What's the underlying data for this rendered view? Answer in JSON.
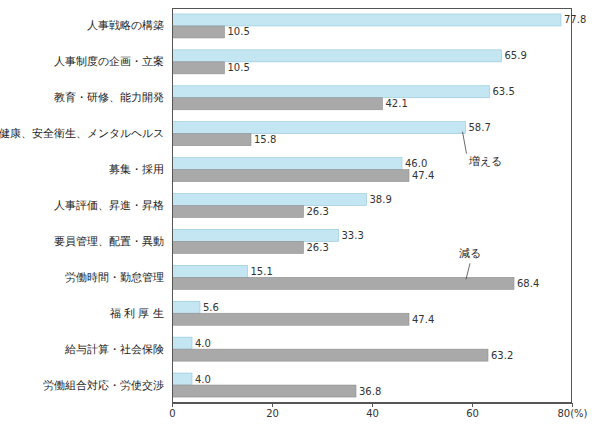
{
  "chart_data": {
    "type": "bar",
    "orientation": "horizontal",
    "categories": [
      "人事戦略の構築",
      "人事制度の企画・立案",
      "教育・研修、能力開発",
      "健康、安全衛生、メンタルヘルス",
      "募集・採用",
      "人事評価、昇進・昇格",
      "要員管理、配置・異動",
      "労働時間・勤怠管理",
      "福 利 厚 生",
      "給与計算・社会保険",
      "労働組合対応・労使交渉"
    ],
    "series": [
      {
        "name": "増える",
        "color": "#c4e6f2",
        "values": [
          77.8,
          65.9,
          63.5,
          58.7,
          46.0,
          38.9,
          33.3,
          15.1,
          5.6,
          4.0,
          4.0
        ],
        "value_labels": [
          "77.8",
          "65.9",
          "63.5",
          "58.7",
          "46.0",
          "38.9",
          "33.3",
          "15.1",
          "5.6",
          "4.0",
          "4.0"
        ]
      },
      {
        "name": "減る",
        "color": "#a9a9a9",
        "values": [
          10.5,
          10.5,
          42.1,
          15.8,
          47.4,
          26.3,
          26.3,
          68.4,
          47.4,
          63.2,
          36.8
        ]
      }
    ],
    "xlim": [
      0,
      80
    ],
    "xticks": [
      0,
      20,
      40,
      60,
      {
        "value": 80,
        "label": "80(%)"
      }
    ],
    "grid": false,
    "data_labels": true
  }
}
